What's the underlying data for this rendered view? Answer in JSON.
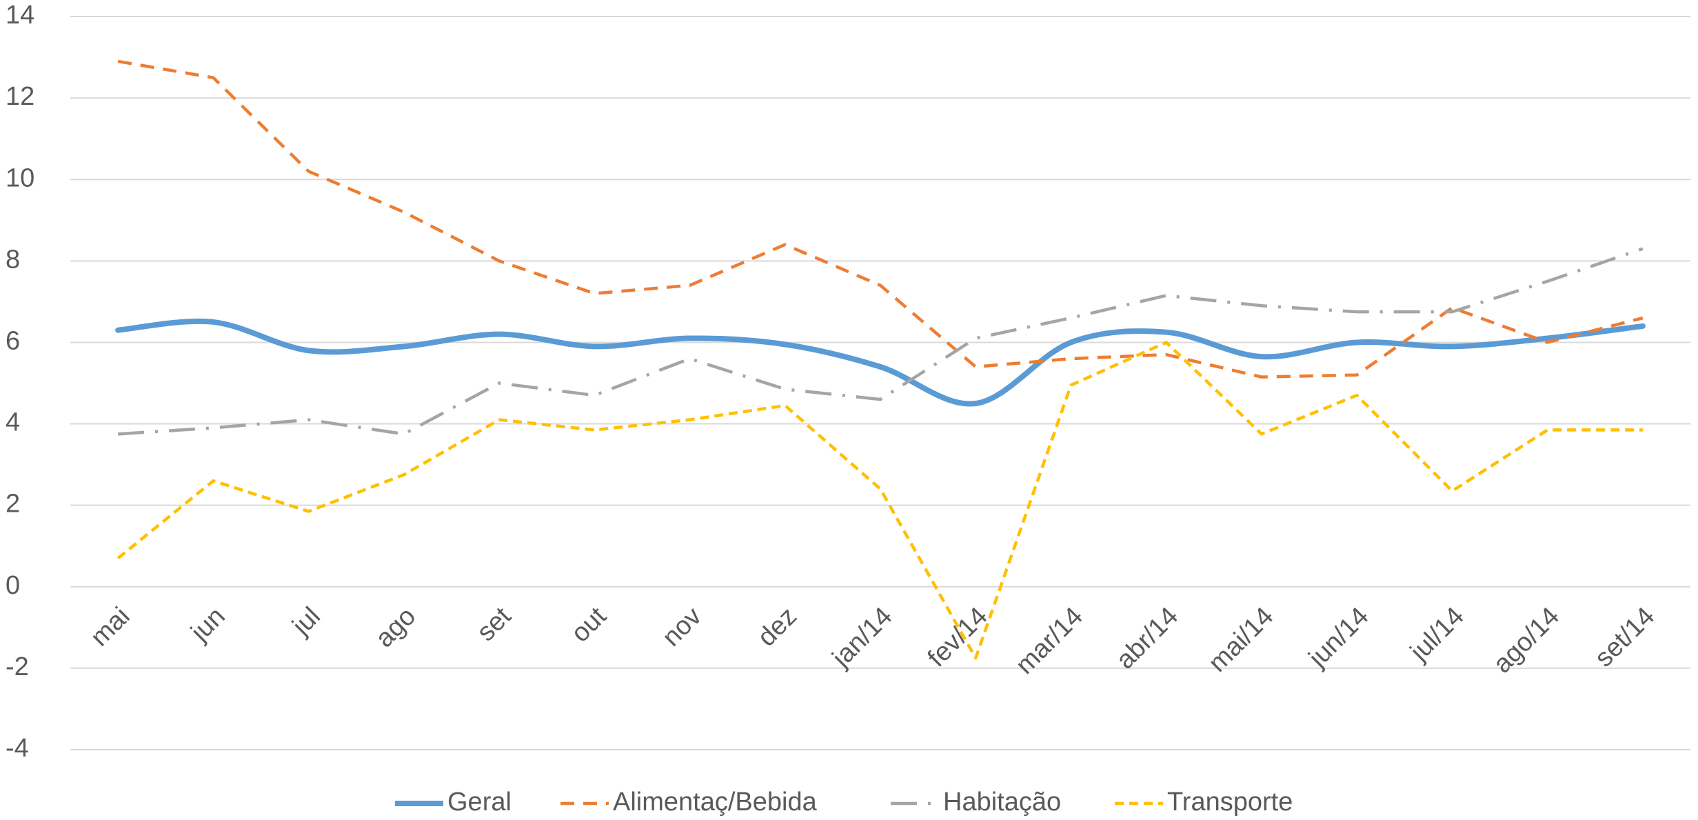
{
  "chart_data": {
    "type": "line",
    "categories": [
      "mai",
      "jun",
      "jul",
      "ago",
      "set",
      "out",
      "nov",
      "dez",
      "jan/14",
      "fev/14",
      "mar/14",
      "abr/14",
      "mai/14",
      "jun/14",
      "jul/14",
      "ago/14",
      "set/14"
    ],
    "series": [
      {
        "name": "Geral",
        "color": "#5b9bd5",
        "smooth": true,
        "values": [
          6.3,
          6.5,
          5.8,
          5.9,
          6.2,
          5.9,
          6.1,
          5.95,
          5.4,
          4.5,
          6.0,
          6.25,
          5.65,
          6.0,
          5.9,
          6.1,
          6.4
        ]
      },
      {
        "name": "Alimentaç/Bebida",
        "color": "#ed7d31",
        "values": [
          12.9,
          12.5,
          10.2,
          9.2,
          8.0,
          7.2,
          7.4,
          8.4,
          7.4,
          5.4,
          5.6,
          5.7,
          5.15,
          5.2,
          6.85,
          6.0,
          6.6
        ]
      },
      {
        "name": "Habitação",
        "color": "#a5a5a5",
        "values": [
          3.75,
          3.9,
          4.1,
          3.75,
          5.0,
          4.7,
          5.6,
          4.85,
          4.6,
          6.1,
          6.6,
          7.15,
          6.9,
          6.75,
          6.75,
          7.5,
          8.3
        ]
      },
      {
        "name": "Transporte",
        "color": "#ffc000",
        "values": [
          0.7,
          2.6,
          1.85,
          2.75,
          4.1,
          3.85,
          4.1,
          4.45,
          2.4,
          -1.75,
          4.95,
          6.0,
          3.75,
          4.7,
          2.35,
          3.85,
          3.85
        ]
      }
    ],
    "ylim": [
      -4,
      14
    ],
    "yticks": [
      -4,
      -2,
      0,
      2,
      4,
      6,
      8,
      10,
      12,
      14
    ],
    "grid": true,
    "legend": "bottom"
  }
}
